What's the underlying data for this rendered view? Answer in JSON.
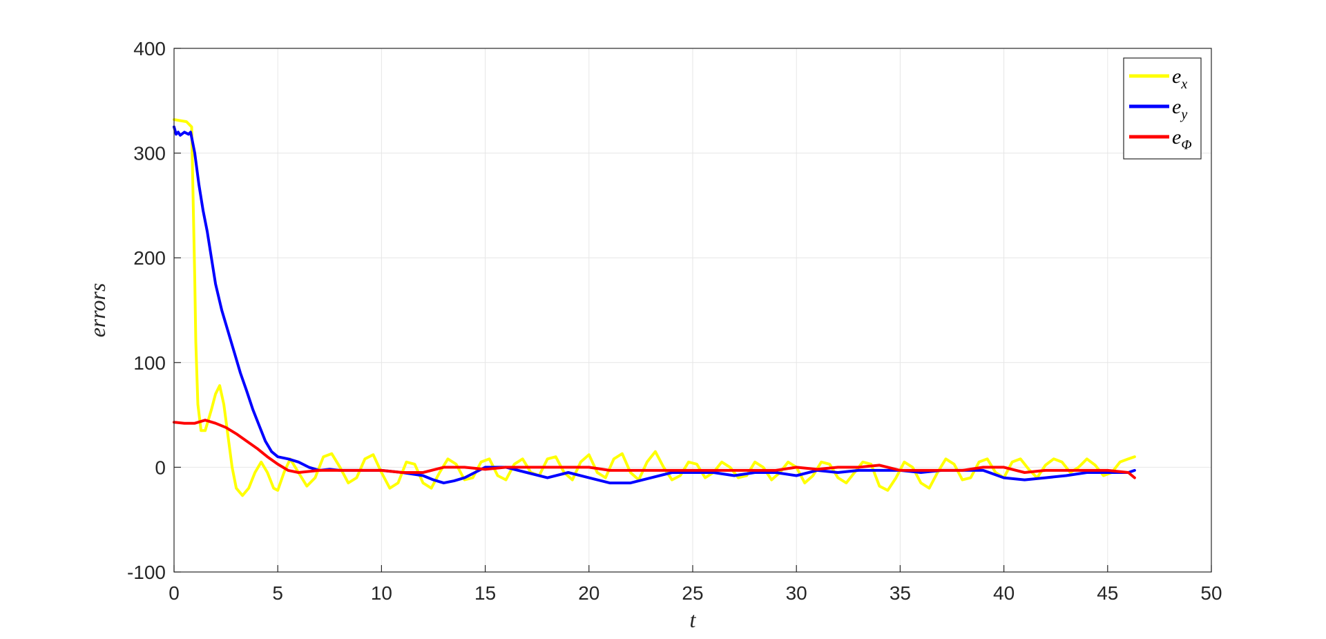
{
  "chart_data": {
    "type": "line",
    "title": "",
    "xlabel": "t",
    "ylabel": "errors",
    "xlim": [
      0,
      50
    ],
    "ylim": [
      -100,
      400
    ],
    "xticks": [
      "0",
      "5",
      "10",
      "15",
      "20",
      "25",
      "30",
      "35",
      "40",
      "45",
      "50"
    ],
    "yticks": [
      "-100",
      "0",
      "100",
      "200",
      "300",
      "400"
    ],
    "grid": true,
    "legend_position": "top-right",
    "series": [
      {
        "name": "e_x",
        "legend_base": "e",
        "legend_sub": "x",
        "color": "#FFFF00",
        "x": [
          0,
          0.3,
          0.6,
          0.85,
          1.0,
          1.05,
          1.15,
          1.3,
          1.5,
          1.8,
          2.0,
          2.2,
          2.4,
          2.6,
          2.8,
          3.0,
          3.3,
          3.6,
          3.9,
          4.2,
          4.5,
          4.8,
          5.0,
          5.3,
          5.6,
          6.0,
          6.4,
          6.8,
          7.2,
          7.6,
          8.0,
          8.4,
          8.8,
          9.2,
          9.6,
          10.0,
          10.4,
          10.8,
          11.2,
          11.6,
          12.0,
          12.4,
          12.8,
          13.2,
          13.6,
          14.0,
          14.4,
          14.8,
          15.2,
          15.6,
          16.0,
          16.4,
          16.8,
          17.2,
          17.6,
          18.0,
          18.4,
          18.8,
          19.2,
          19.6,
          20.0,
          20.4,
          20.8,
          21.2,
          21.6,
          22.0,
          22.4,
          22.8,
          23.2,
          23.6,
          24.0,
          24.4,
          24.8,
          25.2,
          25.6,
          26.0,
          26.4,
          26.8,
          27.2,
          27.6,
          28.0,
          28.4,
          28.8,
          29.2,
          29.6,
          30.0,
          30.4,
          30.8,
          31.2,
          31.6,
          32.0,
          32.4,
          32.8,
          33.2,
          33.6,
          34.0,
          34.4,
          34.8,
          35.2,
          35.6,
          36.0,
          36.4,
          36.8,
          37.2,
          37.6,
          38.0,
          38.4,
          38.8,
          39.2,
          39.6,
          40.0,
          40.4,
          40.8,
          41.2,
          41.6,
          42.0,
          42.4,
          42.8,
          43.2,
          43.6,
          44.0,
          44.4,
          44.8,
          45.2,
          45.6,
          46.0,
          46.3
        ],
        "values": [
          332,
          331,
          330,
          325,
          180,
          120,
          60,
          35,
          35,
          55,
          70,
          78,
          60,
          30,
          0,
          -20,
          -27,
          -20,
          -5,
          5,
          -5,
          -20,
          -22,
          -5,
          8,
          -5,
          -18,
          -10,
          10,
          13,
          0,
          -15,
          -10,
          8,
          12,
          -5,
          -20,
          -15,
          5,
          3,
          -15,
          -20,
          -5,
          8,
          3,
          -12,
          -10,
          5,
          8,
          -8,
          -12,
          3,
          8,
          -5,
          -8,
          8,
          10,
          -5,
          -12,
          5,
          12,
          -5,
          -10,
          8,
          13,
          -5,
          -12,
          5,
          15,
          0,
          -12,
          -8,
          5,
          3,
          -10,
          -5,
          5,
          0,
          -10,
          -8,
          5,
          0,
          -12,
          -5,
          5,
          0,
          -15,
          -8,
          5,
          3,
          -10,
          -15,
          -5,
          5,
          3,
          -18,
          -22,
          -10,
          5,
          0,
          -15,
          -20,
          -5,
          8,
          3,
          -12,
          -10,
          5,
          8,
          -5,
          -10,
          5,
          8,
          -2,
          -10,
          2,
          8,
          5,
          -5,
          0,
          8,
          2,
          -8,
          -5,
          5,
          8,
          10
        ]
      },
      {
        "name": "e_y",
        "legend_base": "e",
        "legend_sub": "y",
        "color": "#0000FF",
        "x": [
          0,
          0.1,
          0.2,
          0.3,
          0.5,
          0.7,
          0.8,
          0.9,
          1.0,
          1.2,
          1.4,
          1.6,
          1.8,
          2.0,
          2.3,
          2.6,
          2.9,
          3.2,
          3.5,
          3.8,
          4.1,
          4.4,
          4.7,
          5.0,
          5.5,
          6.0,
          6.5,
          7.0,
          7.5,
          8.0,
          9.0,
          10.0,
          11.0,
          12.0,
          12.5,
          13.0,
          13.5,
          14.0,
          14.5,
          15.0,
          16.0,
          17.0,
          18.0,
          19.0,
          20.0,
          21.0,
          22.0,
          23.0,
          24.0,
          25.0,
          26.0,
          27.0,
          28.0,
          29.0,
          30.0,
          31.0,
          32.0,
          33.0,
          34.0,
          35.0,
          36.0,
          37.0,
          38.0,
          39.0,
          40.0,
          41.0,
          42.0,
          43.0,
          44.0,
          45.0,
          46.0,
          46.3
        ],
        "values": [
          325,
          318,
          320,
          317,
          320,
          318,
          320,
          310,
          300,
          270,
          245,
          225,
          200,
          175,
          150,
          130,
          110,
          90,
          73,
          55,
          40,
          25,
          15,
          10,
          8,
          5,
          0,
          -3,
          -2,
          -3,
          -3,
          -3,
          -5,
          -8,
          -12,
          -15,
          -13,
          -10,
          -5,
          0,
          0,
          -5,
          -10,
          -5,
          -10,
          -15,
          -15,
          -10,
          -5,
          -5,
          -5,
          -8,
          -5,
          -5,
          -8,
          -3,
          -5,
          -3,
          -3,
          -3,
          -5,
          -3,
          -3,
          -3,
          -10,
          -12,
          -10,
          -8,
          -5,
          -5,
          -5,
          -3
        ]
      },
      {
        "name": "e_Φ",
        "legend_base": "e",
        "legend_sub": "Φ",
        "color": "#FF0000",
        "x": [
          0,
          0.5,
          1.0,
          1.5,
          2.0,
          2.5,
          3.0,
          3.5,
          4.0,
          4.5,
          5.0,
          5.5,
          6.0,
          7.0,
          8.0,
          9.0,
          10.0,
          11.0,
          12.0,
          13.0,
          14.0,
          15.0,
          16.0,
          17.0,
          18.0,
          19.0,
          20.0,
          21.0,
          22.0,
          23.0,
          24.0,
          25.0,
          26.0,
          27.0,
          28.0,
          29.0,
          30.0,
          31.0,
          32.0,
          33.0,
          34.0,
          35.0,
          36.0,
          37.0,
          38.0,
          39.0,
          40.0,
          41.0,
          42.0,
          43.0,
          44.0,
          45.0,
          46.0,
          46.3
        ],
        "values": [
          43,
          42,
          42,
          45,
          42,
          38,
          32,
          25,
          18,
          10,
          3,
          -3,
          -5,
          -3,
          -3,
          -3,
          -3,
          -5,
          -5,
          0,
          0,
          -2,
          0,
          0,
          0,
          0,
          0,
          -3,
          -3,
          -3,
          -3,
          -3,
          -3,
          -3,
          -3,
          -3,
          0,
          -2,
          0,
          0,
          2,
          -3,
          -3,
          -3,
          -3,
          0,
          0,
          -5,
          -3,
          -3,
          -3,
          -3,
          -5,
          -10
        ]
      }
    ]
  }
}
